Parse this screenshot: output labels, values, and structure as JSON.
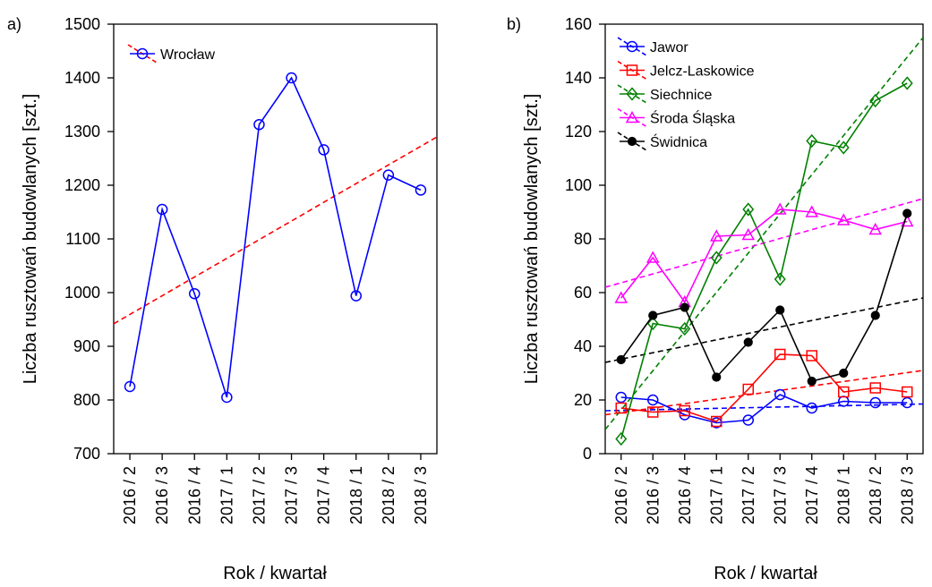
{
  "chart_data": [
    {
      "panel_label": "a)",
      "type": "line",
      "categories": [
        "2016 / 2",
        "2016 / 3",
        "2016 / 4",
        "2017 / 1",
        "2017 / 2",
        "2017 / 3",
        "2017 / 4",
        "2018 / 1",
        "2018 / 2",
        "2018 / 3"
      ],
      "ylabel": "Liczba rusztowań budowlanych [szt.]",
      "xlabel": "Rok / kwartał",
      "ylim": [
        700,
        1500
      ],
      "yticks": [
        700,
        800,
        900,
        1000,
        1100,
        1200,
        1300,
        1400,
        1500
      ],
      "grid": false,
      "legend": "top-left",
      "series": [
        {
          "name": "Wrocław",
          "color": "#0000ff",
          "marker": "circle",
          "values": [
            825,
            1155,
            998,
            805,
            1313,
            1400,
            1266,
            994,
            1219,
            1191
          ],
          "trend": {
            "color": "#ff0000",
            "start": 942,
            "end": 1290
          }
        }
      ]
    },
    {
      "panel_label": "b)",
      "type": "line",
      "categories": [
        "2016 / 2",
        "2016 / 3",
        "2016 / 4",
        "2017 / 1",
        "2017 / 2",
        "2017 / 3",
        "2017 / 4",
        "2018 / 1",
        "2018 / 2",
        "2018 / 3"
      ],
      "ylabel": "Liczba rusztowań budowlanych [szt.]",
      "xlabel": "Rok / kwartał",
      "ylim": [
        0,
        160
      ],
      "yticks": [
        0,
        20,
        40,
        60,
        80,
        100,
        120,
        140,
        160
      ],
      "grid": false,
      "legend": "top-left",
      "series": [
        {
          "name": "Jawor",
          "color": "#0000ff",
          "marker": "circle",
          "values": [
            21,
            20,
            14.5,
            11.5,
            12.5,
            22,
            17,
            19.5,
            19,
            19
          ],
          "trend": {
            "color": "#0000ff",
            "start": 16,
            "end": 18.5
          }
        },
        {
          "name": "Jelcz-Laskowice",
          "color": "#ff0000",
          "marker": "square",
          "values": [
            17,
            15.5,
            16,
            12,
            24,
            37,
            36.5,
            23,
            24.5,
            23
          ],
          "trend": {
            "color": "#ff0000",
            "start": 14.5,
            "end": 31
          }
        },
        {
          "name": "Siechnice",
          "color": "#008000",
          "marker": "diamond",
          "values": [
            5.5,
            48.5,
            46.5,
            73,
            91,
            65,
            116.5,
            114,
            131.5,
            138
          ],
          "trend": {
            "color": "#008000",
            "start": 9,
            "end": 155
          }
        },
        {
          "name": "Środa Śląska",
          "color": "#ff00ff",
          "marker": "triangle",
          "values": [
            58,
            73,
            56.5,
            81,
            81.5,
            91,
            90,
            87,
            83.5,
            86.5
          ],
          "trend": {
            "color": "#ff00ff",
            "start": 62,
            "end": 95
          }
        },
        {
          "name": "Świdnica",
          "color": "#000000",
          "marker": "filled-circle",
          "values": [
            35,
            51.5,
            54.5,
            28.5,
            41.5,
            53.5,
            27,
            30,
            51.5,
            89.5
          ],
          "trend": {
            "color": "#000000",
            "start": 34,
            "end": 58
          }
        }
      ]
    }
  ]
}
